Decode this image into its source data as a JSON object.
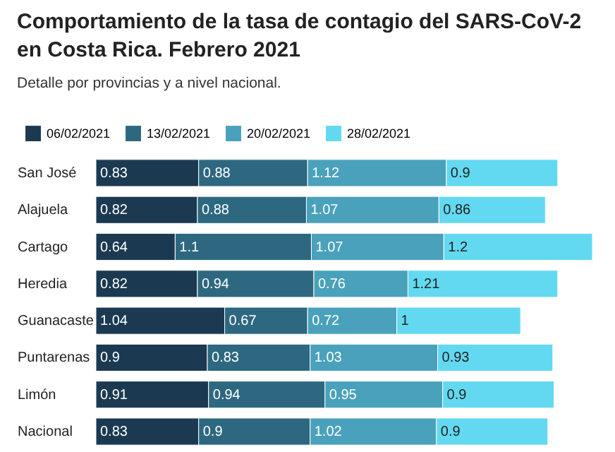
{
  "chart_data": {
    "type": "bar",
    "orientation": "horizontal",
    "stacked": true,
    "data_labels": true,
    "legend": "top left",
    "title": "Comportamiento de la tasa de contagio del SARS-CoV-2 en Costa Rica. Febrero 2021",
    "subtitle": "Detalle por provincias y a nivel nacional.",
    "categories": [
      "San José",
      "Alajuela",
      "Cartago",
      "Heredia",
      "Guanacaste",
      "Puntarenas",
      "Limón",
      "Nacional"
    ],
    "series": [
      {
        "name": "06/02/2021",
        "color": "#1b3a52",
        "values": [
          0.83,
          0.82,
          0.64,
          0.82,
          1.04,
          0.9,
          0.91,
          0.83
        ]
      },
      {
        "name": "13/02/2021",
        "color": "#2d6880",
        "values": [
          0.88,
          0.88,
          1.1,
          0.94,
          0.67,
          0.83,
          0.94,
          0.9
        ]
      },
      {
        "name": "20/02/2021",
        "color": "#4aa1bb",
        "values": [
          1.12,
          1.07,
          1.07,
          0.76,
          0.72,
          1.03,
          0.95,
          1.02
        ]
      },
      {
        "name": "28/02/2021",
        "color": "#62d9f0",
        "values": [
          0.9,
          0.86,
          1.2,
          1.21,
          1,
          0.93,
          0.9,
          0.9
        ]
      }
    ]
  }
}
